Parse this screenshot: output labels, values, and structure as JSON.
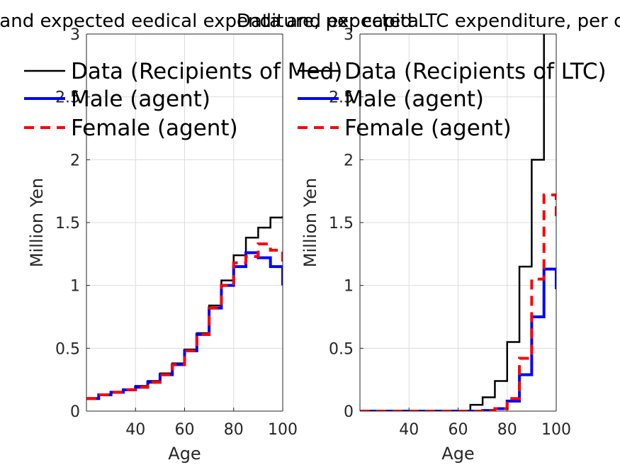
{
  "chart_data": [
    {
      "type": "line",
      "title": "Data and expected eedical expenditure, per capita",
      "xlabel": "Age",
      "ylabel": "Million Yen",
      "xlim": [
        20,
        100
      ],
      "ylim": [
        0,
        3
      ],
      "xticks": [
        40,
        60,
        80,
        100
      ],
      "yticks": [
        0,
        0.5,
        1,
        1.5,
        2,
        2.5,
        3
      ],
      "grid": true,
      "legend_position": "top-left",
      "x": [
        20,
        25,
        30,
        35,
        40,
        45,
        50,
        55,
        60,
        65,
        70,
        75,
        80,
        85,
        90,
        95,
        100
      ],
      "series": [
        {
          "name": "Data (Recipients of Med)",
          "color": "#000000",
          "style": "solid-stairs",
          "values": [
            0.1,
            0.13,
            0.15,
            0.17,
            0.2,
            0.24,
            0.3,
            0.38,
            0.49,
            0.62,
            0.84,
            1.04,
            1.24,
            1.38,
            1.46,
            1.54,
            1.55
          ]
        },
        {
          "name": "Male (agent)",
          "color": "#0000ff",
          "style": "solid",
          "values": [
            0.1,
            0.13,
            0.15,
            0.17,
            0.19,
            0.23,
            0.29,
            0.37,
            0.48,
            0.61,
            0.82,
            1.0,
            1.15,
            1.26,
            1.22,
            1.15,
            1.0
          ]
        },
        {
          "name": "Female (agent)",
          "color": "#ff0000",
          "style": "dashed",
          "values": [
            0.1,
            0.13,
            0.15,
            0.17,
            0.19,
            0.23,
            0.29,
            0.37,
            0.48,
            0.61,
            0.82,
            1.0,
            1.18,
            1.23,
            1.33,
            1.28,
            1.15
          ]
        }
      ]
    },
    {
      "type": "line",
      "title": "Data and expected LTC expenditure, per capita",
      "xlabel": "Age",
      "ylabel": "Million Yen",
      "xlim": [
        20,
        100
      ],
      "ylim": [
        0,
        3
      ],
      "xticks": [
        40,
        60,
        80,
        100
      ],
      "yticks": [
        0,
        0.5,
        1,
        1.5,
        2,
        2.5,
        3
      ],
      "grid": true,
      "legend_position": "top-left",
      "x": [
        20,
        25,
        30,
        35,
        40,
        45,
        50,
        55,
        60,
        65,
        70,
        75,
        80,
        85,
        90,
        95,
        100
      ],
      "series": [
        {
          "name": "Data (Recipients of LTC)",
          "color": "#000000",
          "style": "solid-stairs",
          "values": [
            0,
            0,
            0,
            0,
            0,
            0,
            0,
            0,
            0,
            0.05,
            0.11,
            0.24,
            0.55,
            1.15,
            2.0,
            3.1,
            3.1
          ]
        },
        {
          "name": "Male (agent)",
          "color": "#0000ff",
          "style": "solid",
          "values": [
            0,
            0,
            0,
            0,
            0,
            0,
            0,
            0,
            0,
            0,
            0.005,
            0.02,
            0.08,
            0.29,
            0.75,
            1.13,
            0.97
          ]
        },
        {
          "name": "Female (agent)",
          "color": "#ff0000",
          "style": "dashed",
          "values": [
            0,
            0,
            0,
            0,
            0,
            0,
            0,
            0,
            0,
            0,
            0.005,
            0.02,
            0.1,
            0.42,
            1.05,
            1.72,
            1.5
          ]
        }
      ]
    }
  ]
}
